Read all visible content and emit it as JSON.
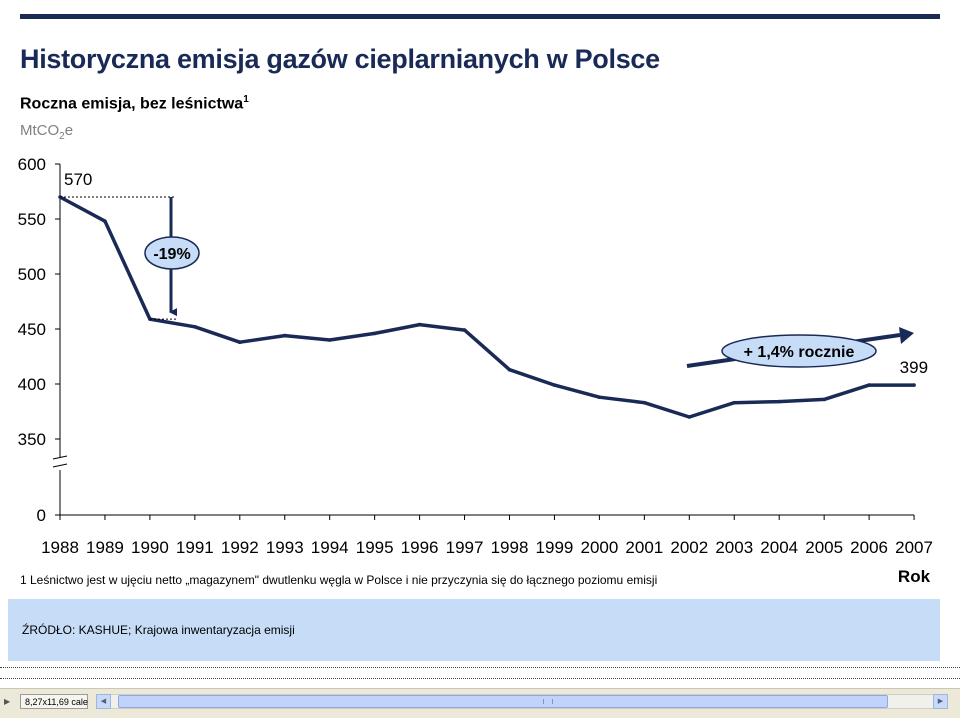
{
  "header": {
    "title": "Historyczna emisja gazów cieplarnianych w Polsce",
    "subtitle": "Roczna emisja, bez leśnictwa",
    "subtitle_footnote_mark": "1",
    "unit_prefix": "MtCO",
    "unit_subscript": "2",
    "unit_suffix": "e"
  },
  "chart_data": {
    "type": "line",
    "x": [
      "1988",
      "1989",
      "1990",
      "1991",
      "1992",
      "1993",
      "1994",
      "1995",
      "1996",
      "1997",
      "1998",
      "1999",
      "2000",
      "2001",
      "2002",
      "2003",
      "2004",
      "2005",
      "2006",
      "2007"
    ],
    "series": [
      {
        "values": [
          570,
          548,
          459,
          452,
          438,
          444,
          440,
          446,
          454,
          449,
          413,
          399,
          388,
          383,
          370,
          383,
          384,
          386,
          399,
          399
        ]
      }
    ],
    "y_ticks": [
      "600",
      "550",
      "500",
      "450",
      "400",
      "350",
      "0"
    ],
    "ylim": [
      350,
      600
    ],
    "y_axis_break": true,
    "xlabel": "Rok",
    "ylabel": "",
    "grid": false,
    "line_color": "#1a2a57",
    "annotations": {
      "start_value": "570",
      "end_value": "399",
      "decline_label": "-19%",
      "growth_label": "+ 1,4% rocznie"
    }
  },
  "footer": {
    "footnote": "1 Leśnictwo jest w ujęciu netto „magazynem\" dwutlenku węgla w Polsce i nie przyczynia się do łącznego poziomu emisji",
    "source": "ŹRÓDŁO: KASHUE; Krajowa inwentaryzacja emisji"
  },
  "statusbar": {
    "page_size": "8,27x11,69 cale"
  }
}
